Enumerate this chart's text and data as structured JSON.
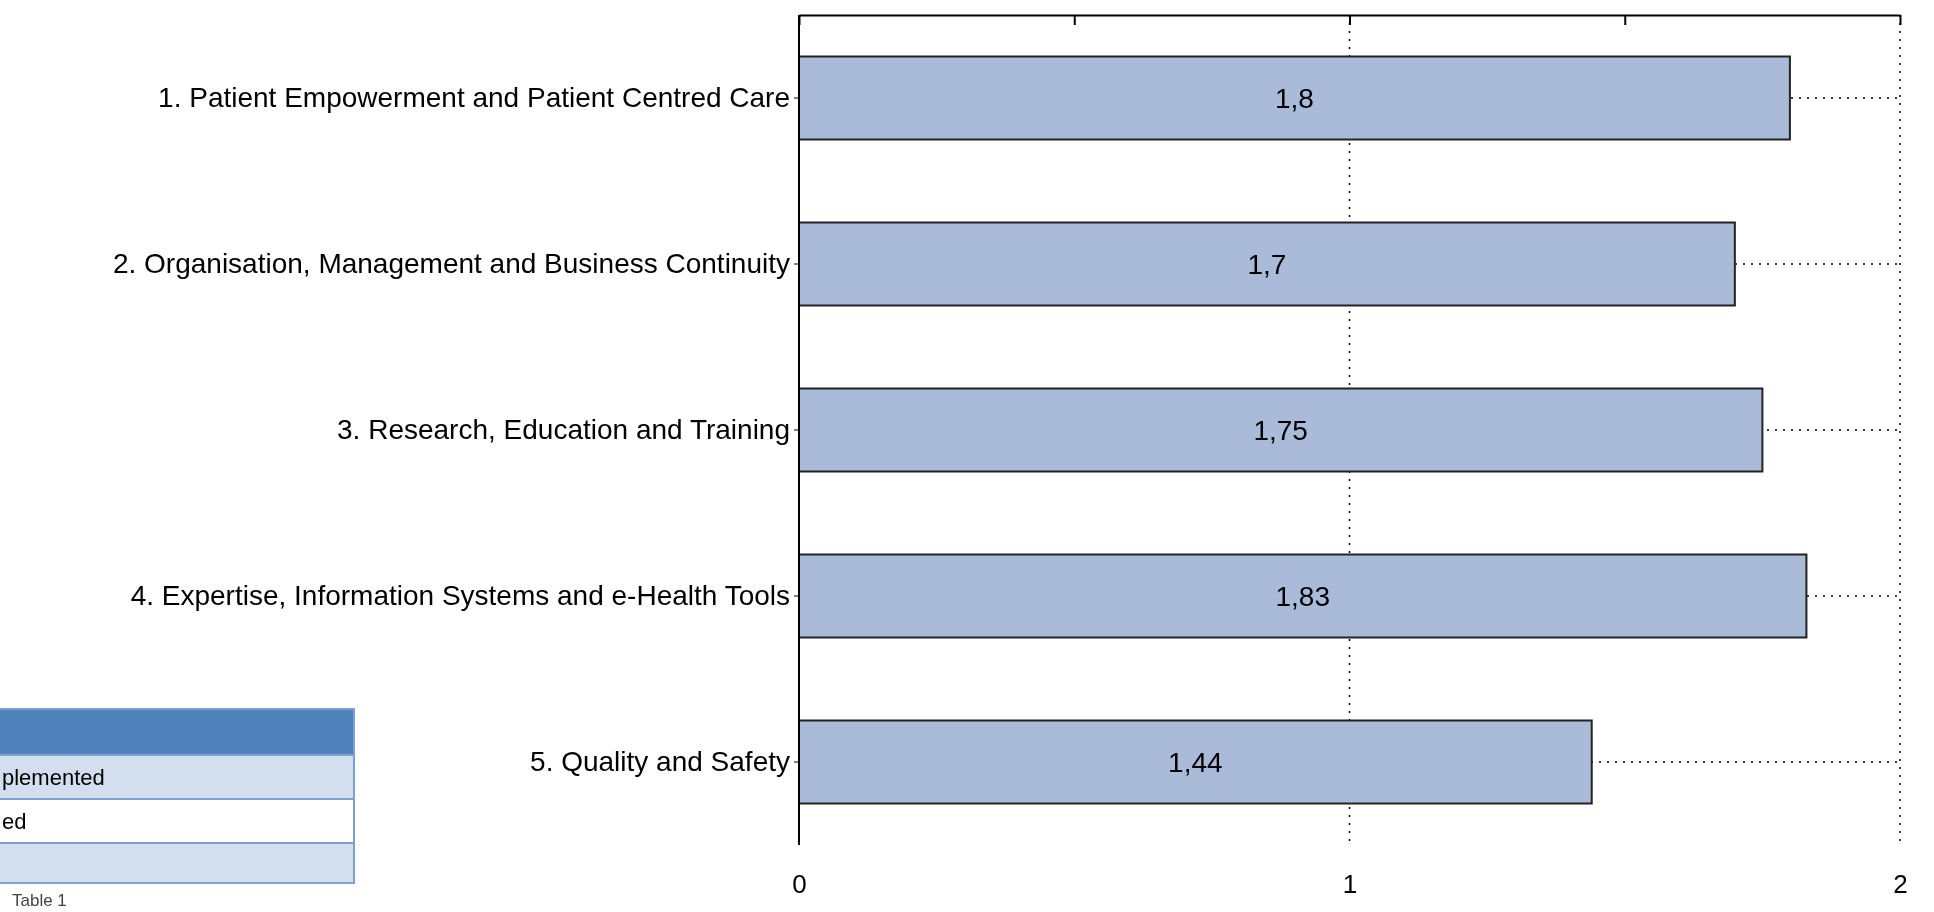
{
  "chart_data": {
    "type": "bar",
    "orientation": "horizontal",
    "categories": [
      "1. Patient Empowerment and Patient Centred Care",
      "2. Organisation, Management and Business Continuity",
      "3. Research, Education and Training",
      "4. Expertise, Information Systems and e-Health Tools",
      "5. Quality and Safety"
    ],
    "values": [
      1.8,
      1.7,
      1.75,
      1.83,
      1.44
    ],
    "value_labels": [
      "1,8",
      "1,7",
      "1,75",
      "1,83",
      "1,44"
    ],
    "color": "#a9bbd9",
    "xlim": [
      0,
      2
    ],
    "xticks": [
      0,
      {
        "value": 0.5,
        "label": null
      },
      1,
      {
        "value": 1.5,
        "label": null
      },
      2
    ],
    "grid": true,
    "annotations": [
      "plemented",
      "ed",
      "Table 1"
    ]
  }
}
